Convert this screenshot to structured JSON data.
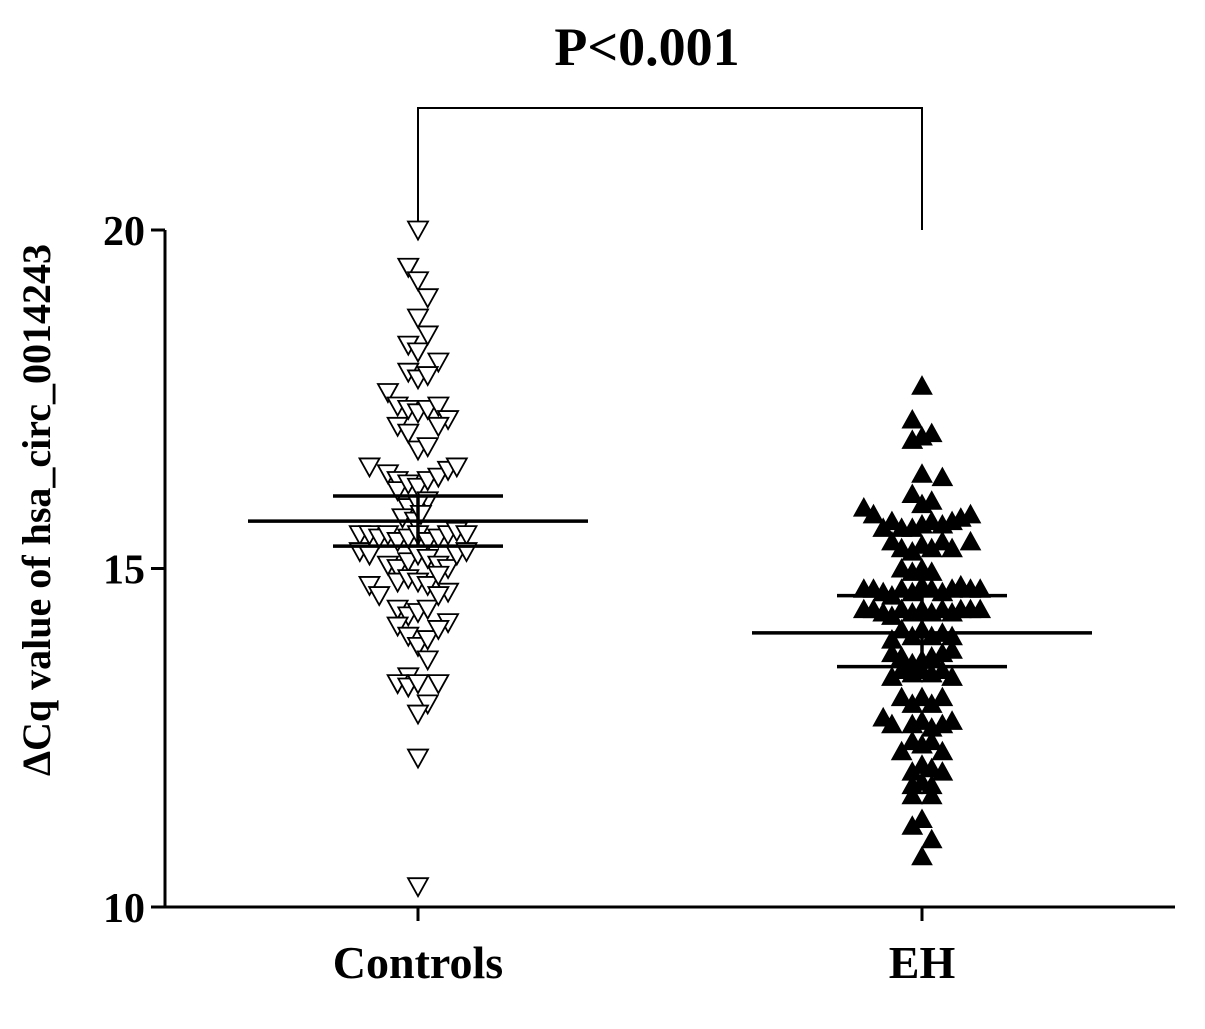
{
  "chart_data": {
    "type": "scatter",
    "title": "P<0.001",
    "xlabel": "",
    "ylabel": "ΔCq value of hsa_circ_0014243",
    "categories": [
      "Controls",
      "EH"
    ],
    "ylim": [
      10,
      20
    ],
    "yticks": [
      10,
      15,
      20
    ],
    "grid": false,
    "legend": "none",
    "significance_bracket": {
      "from": "Controls",
      "to": "EH",
      "label": "P<0.001"
    },
    "series": [
      {
        "category": "Controls",
        "marker": "open-down-triangle",
        "mean": 15.7,
        "error_bar": [
          15.33,
          16.07
        ],
        "points": [
          {
            "dx": 0,
            "y": 20.0
          },
          {
            "dx": -0.1,
            "y": 19.45
          },
          {
            "dx": 0,
            "y": 19.25
          },
          {
            "dx": 0.1,
            "y": 19.0
          },
          {
            "dx": 0,
            "y": 18.7
          },
          {
            "dx": 0.1,
            "y": 18.45
          },
          {
            "dx": -0.1,
            "y": 18.3
          },
          {
            "dx": 0,
            "y": 18.2
          },
          {
            "dx": 0.21,
            "y": 18.05
          },
          {
            "dx": -0.1,
            "y": 17.9
          },
          {
            "dx": 0,
            "y": 17.8
          },
          {
            "dx": 0.1,
            "y": 17.85
          },
          {
            "dx": -0.31,
            "y": 17.6
          },
          {
            "dx": -0.21,
            "y": 17.4
          },
          {
            "dx": -0.1,
            "y": 17.35
          },
          {
            "dx": 0,
            "y": 17.3
          },
          {
            "dx": 0.1,
            "y": 17.35
          },
          {
            "dx": 0.21,
            "y": 17.4
          },
          {
            "dx": 0.31,
            "y": 17.2
          },
          {
            "dx": -0.21,
            "y": 17.1
          },
          {
            "dx": -0.1,
            "y": 17.0
          },
          {
            "dx": 0,
            "y": 16.75
          },
          {
            "dx": 0.1,
            "y": 16.8
          },
          {
            "dx": 0.21,
            "y": 17.1
          },
          {
            "dx": -0.5,
            "y": 16.5
          },
          {
            "dx": -0.31,
            "y": 16.4
          },
          {
            "dx": -0.21,
            "y": 16.3
          },
          {
            "dx": -0.21,
            "y": 16.15
          },
          {
            "dx": -0.1,
            "y": 16.25
          },
          {
            "dx": 0,
            "y": 16.2
          },
          {
            "dx": 0.1,
            "y": 16.3
          },
          {
            "dx": 0.21,
            "y": 16.35
          },
          {
            "dx": 0.31,
            "y": 16.45
          },
          {
            "dx": 0.4,
            "y": 16.5
          },
          {
            "dx": 0.1,
            "y": 16.0
          },
          {
            "dx": -0.1,
            "y": 15.9
          },
          {
            "dx": 0,
            "y": 15.95
          },
          {
            "dx": -0.16,
            "y": 15.75
          },
          {
            "dx": -0.03,
            "y": 15.7
          },
          {
            "dx": 0.03,
            "y": 15.8
          },
          {
            "dx": -0.6,
            "y": 15.5
          },
          {
            "dx": -0.5,
            "y": 15.5
          },
          {
            "dx": -0.4,
            "y": 15.45
          },
          {
            "dx": -0.31,
            "y": 15.5
          },
          {
            "dx": -0.21,
            "y": 15.4
          },
          {
            "dx": -0.1,
            "y": 15.45
          },
          {
            "dx": 0,
            "y": 15.5
          },
          {
            "dx": 0.1,
            "y": 15.4
          },
          {
            "dx": 0.21,
            "y": 15.45
          },
          {
            "dx": 0.31,
            "y": 15.5
          },
          {
            "dx": 0.4,
            "y": 15.55
          },
          {
            "dx": 0.5,
            "y": 15.5
          },
          {
            "dx": -0.6,
            "y": 15.25
          },
          {
            "dx": -0.5,
            "y": 15.2
          },
          {
            "dx": -0.31,
            "y": 15.05
          },
          {
            "dx": -0.21,
            "y": 15.0
          },
          {
            "dx": -0.1,
            "y": 15.1
          },
          {
            "dx": 0,
            "y": 15.2
          },
          {
            "dx": 0.1,
            "y": 15.15
          },
          {
            "dx": 0.21,
            "y": 15.05
          },
          {
            "dx": 0.31,
            "y": 15.0
          },
          {
            "dx": 0.4,
            "y": 15.2
          },
          {
            "dx": 0.5,
            "y": 15.25
          },
          {
            "dx": -0.5,
            "y": 14.75
          },
          {
            "dx": -0.4,
            "y": 14.6
          },
          {
            "dx": -0.21,
            "y": 14.8
          },
          {
            "dx": -0.1,
            "y": 14.85
          },
          {
            "dx": 0,
            "y": 14.8
          },
          {
            "dx": 0.1,
            "y": 14.75
          },
          {
            "dx": 0.21,
            "y": 14.9
          },
          {
            "dx": 0.31,
            "y": 14.65
          },
          {
            "dx": -0.21,
            "y": 14.4
          },
          {
            "dx": -0.1,
            "y": 14.3
          },
          {
            "dx": 0,
            "y": 14.35
          },
          {
            "dx": 0.1,
            "y": 14.4
          },
          {
            "dx": 0.21,
            "y": 14.6
          },
          {
            "dx": 0.31,
            "y": 14.2
          },
          {
            "dx": -0.21,
            "y": 14.15
          },
          {
            "dx": -0.1,
            "y": 14.0
          },
          {
            "dx": 0,
            "y": 13.85
          },
          {
            "dx": 0.1,
            "y": 13.95
          },
          {
            "dx": 0.21,
            "y": 14.1
          },
          {
            "dx": 0.1,
            "y": 13.65
          },
          {
            "dx": -0.1,
            "y": 13.4
          },
          {
            "dx": -0.21,
            "y": 13.3
          },
          {
            "dx": -0.1,
            "y": 13.25
          },
          {
            "dx": 0,
            "y": 13.3
          },
          {
            "dx": 0.21,
            "y": 13.3
          },
          {
            "dx": 0.1,
            "y": 13.0
          },
          {
            "dx": 0,
            "y": 12.85
          },
          {
            "dx": 0,
            "y": 12.2
          },
          {
            "dx": 0,
            "y": 10.3
          }
        ]
      },
      {
        "category": "EH",
        "marker": "filled-up-triangle",
        "mean": 14.05,
        "error_bar": [
          13.55,
          14.6
        ],
        "points": [
          {
            "dx": 0,
            "y": 17.7
          },
          {
            "dx": -0.1,
            "y": 17.2
          },
          {
            "dx": -0.1,
            "y": 16.9
          },
          {
            "dx": 0,
            "y": 16.95
          },
          {
            "dx": 0.1,
            "y": 17.0
          },
          {
            "dx": 0,
            "y": 16.4
          },
          {
            "dx": 0.21,
            "y": 16.35
          },
          {
            "dx": -0.1,
            "y": 16.1
          },
          {
            "dx": 0,
            "y": 15.95
          },
          {
            "dx": 0.1,
            "y": 16.0
          },
          {
            "dx": -0.6,
            "y": 15.9
          },
          {
            "dx": -0.5,
            "y": 15.8
          },
          {
            "dx": -0.31,
            "y": 15.7
          },
          {
            "dx": -0.21,
            "y": 15.6
          },
          {
            "dx": -0.1,
            "y": 15.6
          },
          {
            "dx": 0,
            "y": 15.65
          },
          {
            "dx": 0.1,
            "y": 15.7
          },
          {
            "dx": 0.21,
            "y": 15.65
          },
          {
            "dx": 0.31,
            "y": 15.7
          },
          {
            "dx": 0.4,
            "y": 15.75
          },
          {
            "dx": 0.5,
            "y": 15.8
          },
          {
            "dx": -0.4,
            "y": 15.6
          },
          {
            "dx": -0.31,
            "y": 15.4
          },
          {
            "dx": -0.21,
            "y": 15.3
          },
          {
            "dx": -0.1,
            "y": 15.25
          },
          {
            "dx": 0,
            "y": 15.35
          },
          {
            "dx": 0.1,
            "y": 15.3
          },
          {
            "dx": 0.21,
            "y": 15.4
          },
          {
            "dx": 0.31,
            "y": 15.3
          },
          {
            "dx": 0.5,
            "y": 15.4
          },
          {
            "dx": -0.21,
            "y": 15.0
          },
          {
            "dx": -0.1,
            "y": 14.95
          },
          {
            "dx": 0,
            "y": 15.0
          },
          {
            "dx": 0.1,
            "y": 14.95
          },
          {
            "dx": -0.6,
            "y": 14.7
          },
          {
            "dx": -0.5,
            "y": 14.7
          },
          {
            "dx": -0.4,
            "y": 14.65
          },
          {
            "dx": -0.31,
            "y": 14.6
          },
          {
            "dx": -0.21,
            "y": 14.7
          },
          {
            "dx": -0.1,
            "y": 14.65
          },
          {
            "dx": 0,
            "y": 14.75
          },
          {
            "dx": 0.1,
            "y": 14.7
          },
          {
            "dx": 0.21,
            "y": 14.65
          },
          {
            "dx": 0.31,
            "y": 14.7
          },
          {
            "dx": 0.4,
            "y": 14.75
          },
          {
            "dx": 0.5,
            "y": 14.7
          },
          {
            "dx": 0.6,
            "y": 14.7
          },
          {
            "dx": -0.6,
            "y": 14.4
          },
          {
            "dx": -0.5,
            "y": 14.4
          },
          {
            "dx": -0.4,
            "y": 14.35
          },
          {
            "dx": -0.31,
            "y": 14.3
          },
          {
            "dx": -0.21,
            "y": 14.4
          },
          {
            "dx": -0.1,
            "y": 14.35
          },
          {
            "dx": 0,
            "y": 14.4
          },
          {
            "dx": 0.1,
            "y": 14.35
          },
          {
            "dx": 0.21,
            "y": 14.4
          },
          {
            "dx": 0.31,
            "y": 14.35
          },
          {
            "dx": 0.4,
            "y": 14.4
          },
          {
            "dx": 0.5,
            "y": 14.4
          },
          {
            "dx": 0.6,
            "y": 14.4
          },
          {
            "dx": -0.31,
            "y": 13.95
          },
          {
            "dx": -0.21,
            "y": 14.1
          },
          {
            "dx": -0.1,
            "y": 14.0
          },
          {
            "dx": 0,
            "y": 14.1
          },
          {
            "dx": 0.1,
            "y": 14.0
          },
          {
            "dx": 0.21,
            "y": 14.05
          },
          {
            "dx": 0.31,
            "y": 14.0
          },
          {
            "dx": -0.31,
            "y": 13.75
          },
          {
            "dx": -0.21,
            "y": 13.7
          },
          {
            "dx": -0.1,
            "y": 13.6
          },
          {
            "dx": 0,
            "y": 13.65
          },
          {
            "dx": 0.1,
            "y": 13.7
          },
          {
            "dx": 0.21,
            "y": 13.75
          },
          {
            "dx": 0.31,
            "y": 13.8
          },
          {
            "dx": -0.31,
            "y": 13.4
          },
          {
            "dx": -0.21,
            "y": 13.5
          },
          {
            "dx": -0.1,
            "y": 13.45
          },
          {
            "dx": 0,
            "y": 13.5
          },
          {
            "dx": 0.1,
            "y": 13.45
          },
          {
            "dx": 0.21,
            "y": 13.5
          },
          {
            "dx": 0.31,
            "y": 13.4
          },
          {
            "dx": -0.21,
            "y": 13.1
          },
          {
            "dx": -0.1,
            "y": 13.0
          },
          {
            "dx": 0,
            "y": 13.1
          },
          {
            "dx": 0.1,
            "y": 13.0
          },
          {
            "dx": 0.21,
            "y": 13.1
          },
          {
            "dx": -0.4,
            "y": 12.8
          },
          {
            "dx": -0.31,
            "y": 12.7
          },
          {
            "dx": -0.1,
            "y": 12.7
          },
          {
            "dx": 0,
            "y": 12.75
          },
          {
            "dx": 0.1,
            "y": 12.65
          },
          {
            "dx": 0.21,
            "y": 12.7
          },
          {
            "dx": 0.31,
            "y": 12.75
          },
          {
            "dx": -0.21,
            "y": 12.3
          },
          {
            "dx": -0.1,
            "y": 12.45
          },
          {
            "dx": 0,
            "y": 12.4
          },
          {
            "dx": 0.1,
            "y": 12.45
          },
          {
            "dx": 0.21,
            "y": 12.3
          },
          {
            "dx": -0.1,
            "y": 12.0
          },
          {
            "dx": 0,
            "y": 12.1
          },
          {
            "dx": 0.1,
            "y": 12.05
          },
          {
            "dx": 0.21,
            "y": 12.0
          },
          {
            "dx": -0.1,
            "y": 11.8
          },
          {
            "dx": 0,
            "y": 11.85
          },
          {
            "dx": 0.1,
            "y": 11.8
          },
          {
            "dx": -0.1,
            "y": 11.65
          },
          {
            "dx": 0.1,
            "y": 11.65
          },
          {
            "dx": -0.1,
            "y": 11.2
          },
          {
            "dx": 0,
            "y": 11.3
          },
          {
            "dx": 0.1,
            "y": 11.0
          },
          {
            "dx": 0,
            "y": 10.75
          }
        ]
      }
    ]
  }
}
